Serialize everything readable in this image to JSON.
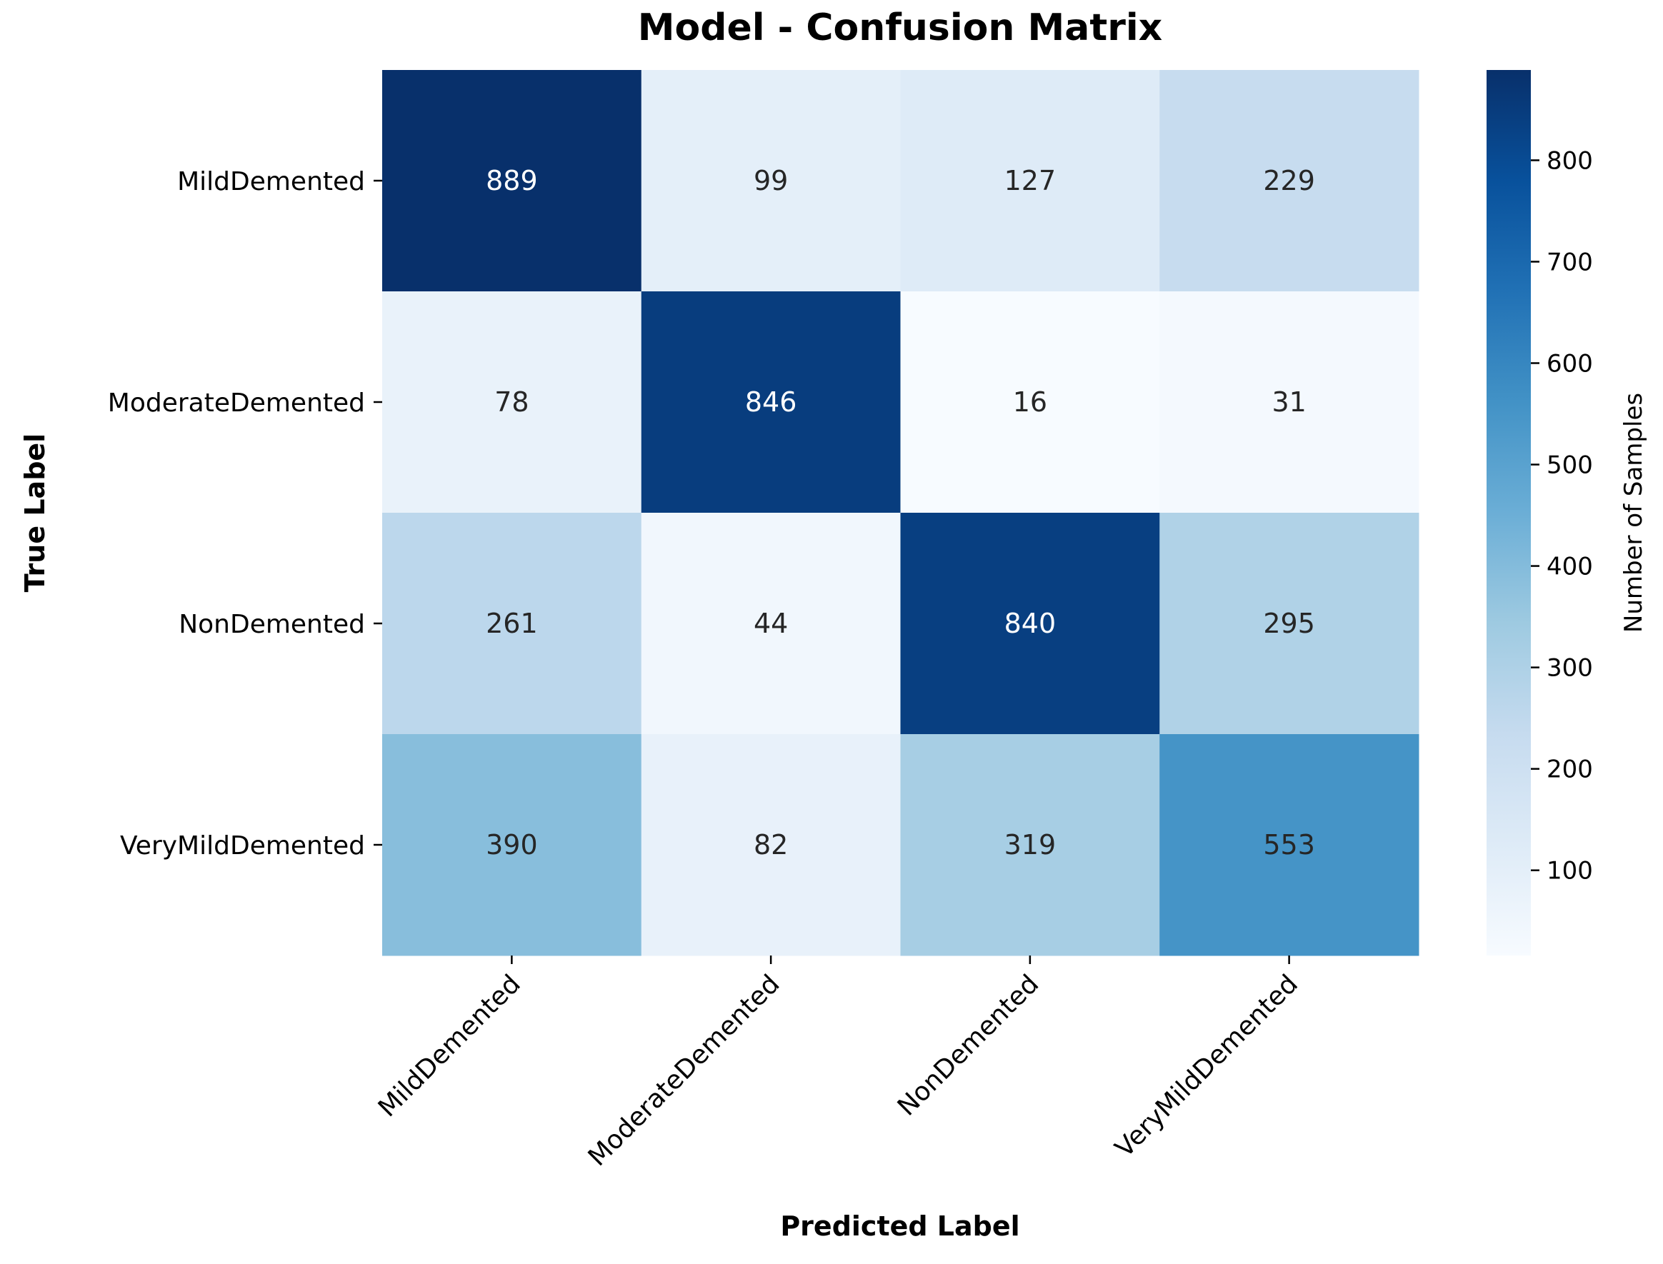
{
  "chart_data": {
    "type": "heatmap",
    "title": "Model - Confusion Matrix",
    "xlabel": "Predicted Label",
    "ylabel": "True Label",
    "x_categories": [
      "MildDemented",
      "ModerateDemented",
      "NonDemented",
      "VeryMildDemented"
    ],
    "y_categories": [
      "MildDemented",
      "ModerateDemented",
      "NonDemented",
      "VeryMildDemented"
    ],
    "values": [
      [
        889,
        99,
        127,
        229
      ],
      [
        78,
        846,
        16,
        31
      ],
      [
        261,
        44,
        840,
        295
      ],
      [
        390,
        82,
        319,
        553
      ]
    ],
    "colorbar": {
      "label": "Number of Samples",
      "vmin": 16,
      "vmax": 889,
      "ticks": [
        100,
        200,
        300,
        400,
        500,
        600,
        700,
        800
      ]
    },
    "colormap": "Blues",
    "x_tick_rotation_deg": 45
  }
}
